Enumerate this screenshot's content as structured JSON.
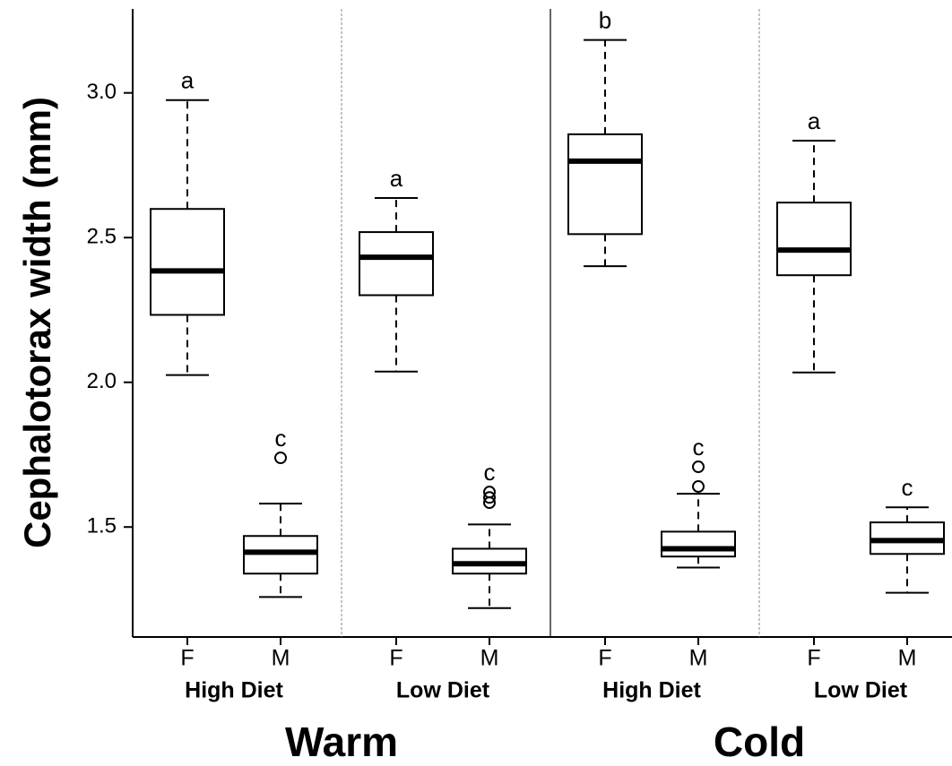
{
  "chart_data": {
    "type": "box",
    "y_label": "Cephalotorax width (mm)",
    "categories": [
      "F",
      "M",
      "F",
      "M",
      "F",
      "M",
      "F",
      "M"
    ],
    "diets": [
      "High Diet",
      "Low Diet",
      "High Diet",
      "Low Diet"
    ],
    "temperatures": [
      "Warm",
      "Cold"
    ],
    "ylim": [
      1.12,
      3.29
    ],
    "yticks": [
      1.5,
      {
        "value": 2,
        "label": "2.0"
      },
      2.5,
      {
        "value": 3,
        "label": "3.0"
      }
    ],
    "boxes": [
      {
        "min": 2.025,
        "q1": 2.233,
        "median": 2.385,
        "q3": 2.599,
        "max": 2.975,
        "outliers": [],
        "label": "a"
      },
      {
        "min": 1.258,
        "q1": 1.339,
        "median": 1.413,
        "q3": 1.469,
        "max": 1.581,
        "outliers": [
          1.739
        ],
        "label": "c"
      },
      {
        "min": 2.037,
        "q1": 2.301,
        "median": 2.432,
        "q3": 2.519,
        "max": 2.637,
        "outliers": [],
        "label": "a"
      },
      {
        "min": 1.22,
        "q1": 1.339,
        "median": 1.373,
        "q3": 1.425,
        "max": 1.509,
        "outliers": [
          1.621,
          1.602,
          1.584
        ],
        "label": "c"
      },
      {
        "min": 2.401,
        "q1": 2.512,
        "median": 2.764,
        "q3": 2.857,
        "max": 3.183,
        "outliers": [],
        "label": "b"
      },
      {
        "min": 1.36,
        "q1": 1.398,
        "median": 1.425,
        "q3": 1.484,
        "max": 1.615,
        "outliers": [
          1.708,
          1.64
        ],
        "label": "c"
      },
      {
        "min": 2.034,
        "q1": 2.37,
        "median": 2.457,
        "q3": 2.621,
        "max": 2.835,
        "outliers": [],
        "label": "a"
      },
      {
        "min": 1.273,
        "q1": 1.407,
        "median": 1.453,
        "q3": 1.516,
        "max": 1.568,
        "outliers": [],
        "label": "c"
      }
    ]
  }
}
